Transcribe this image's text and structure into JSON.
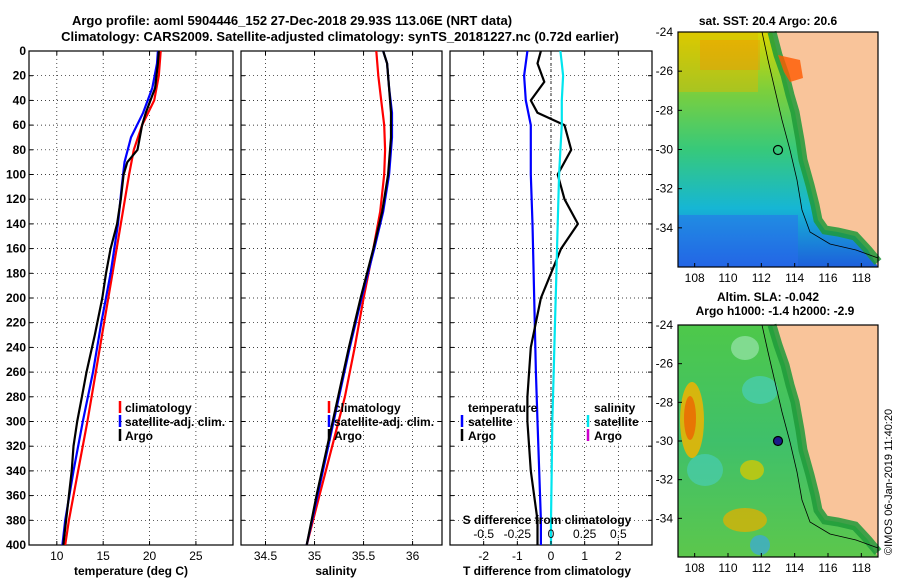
{
  "header": {
    "line1": "Argo profile: aoml 5904446_152 27-Dec-2018 29.93S 113.06E (NRT data)",
    "line2": "Climatology: CARS2009. Satellite-adjusted climatology: synTS_20181227.nc (0.72d earlier)"
  },
  "footer": {
    "credit": "©IMOS 06-Jan-2019 11:40:20"
  },
  "colors": {
    "climatology": "#ff0000",
    "satellite": "#0000ff",
    "argo": "#000000",
    "sat_salinity": "#00e5ee"
  },
  "chart_data": [
    {
      "type": "line",
      "id": "temperature",
      "xlabel": "temperature (deg C)",
      "xlim": [
        7,
        29
      ],
      "xticks": [
        10,
        15,
        20,
        25
      ],
      "ylim": [
        0,
        400
      ],
      "yticks": [
        0,
        20,
        40,
        60,
        80,
        100,
        120,
        140,
        160,
        180,
        200,
        220,
        240,
        260,
        280,
        300,
        320,
        340,
        360,
        380,
        400
      ],
      "legend": [
        "climatology",
        "satellite-adj. clim.",
        "Argo"
      ],
      "series": [
        {
          "name": "climatology",
          "color": "#ff0000",
          "depth": [
            0,
            20,
            40,
            60,
            80,
            100,
            140,
            180,
            220,
            260,
            300,
            340,
            380,
            400
          ],
          "values": [
            21.2,
            21.0,
            20.5,
            19.2,
            18.3,
            17.8,
            16.9,
            16.0,
            15.1,
            14.2,
            13.3,
            12.3,
            11.3,
            10.9
          ]
        },
        {
          "name": "satellite-adj. clim.",
          "color": "#0000ff",
          "depth": [
            0,
            10,
            30,
            50,
            70,
            90,
            110,
            140,
            180,
            220,
            260,
            300,
            340,
            380,
            400
          ],
          "values": [
            20.9,
            20.8,
            20.3,
            19.3,
            18.0,
            17.3,
            17.0,
            16.6,
            15.8,
            14.8,
            13.9,
            12.8,
            11.8,
            10.9,
            10.6
          ]
        },
        {
          "name": "Argo",
          "color": "#000000",
          "depth": [
            0,
            10,
            30,
            50,
            60,
            80,
            90,
            100,
            120,
            140,
            160,
            180,
            200,
            230,
            260,
            280,
            300,
            320,
            340,
            360,
            380,
            400
          ],
          "values": [
            21.0,
            20.9,
            20.6,
            19.6,
            19.2,
            18.7,
            17.6,
            17.2,
            16.9,
            16.5,
            15.8,
            15.3,
            14.9,
            14.1,
            13.2,
            12.7,
            12.2,
            11.8,
            11.6,
            11.3,
            11.0,
            10.7
          ]
        }
      ]
    },
    {
      "type": "line",
      "id": "salinity",
      "xlabel": "salinity",
      "xlim": [
        34.25,
        36.3
      ],
      "xticks": [
        34.5,
        35,
        35.5,
        36
      ],
      "xticklabels": [
        "34.5",
        "35",
        "35.5",
        "36"
      ],
      "ylim": [
        0,
        400
      ],
      "legend": [
        "climatology",
        "satellite-adj. clim.",
        "Argo"
      ],
      "series": [
        {
          "name": "climatology",
          "color": "#ff0000",
          "depth": [
            0,
            20,
            40,
            60,
            80,
            100,
            130,
            160,
            200,
            240,
            280,
            320,
            360,
            400
          ],
          "values": [
            35.63,
            35.65,
            35.68,
            35.71,
            35.72,
            35.71,
            35.67,
            35.6,
            35.5,
            35.41,
            35.31,
            35.18,
            35.05,
            34.92
          ]
        },
        {
          "name": "satellite-adj. clim.",
          "color": "#0000ff",
          "depth": [
            0,
            10,
            30,
            50,
            70,
            100,
            130,
            160,
            200,
            240,
            280,
            320,
            360,
            400
          ],
          "values": [
            35.7,
            35.74,
            35.76,
            35.79,
            35.79,
            35.76,
            35.7,
            35.61,
            35.48,
            35.36,
            35.25,
            35.14,
            35.03,
            34.92
          ]
        },
        {
          "name": "Argo",
          "color": "#000000",
          "depth": [
            0,
            10,
            30,
            50,
            70,
            100,
            130,
            160,
            200,
            240,
            280,
            320,
            360,
            400
          ],
          "values": [
            35.7,
            35.74,
            35.76,
            35.78,
            35.78,
            35.75,
            35.69,
            35.6,
            35.47,
            35.35,
            35.24,
            35.13,
            35.02,
            34.92
          ]
        }
      ]
    },
    {
      "type": "line",
      "id": "difference",
      "xlabel": "T difference from climatology",
      "xlim": [
        -3,
        3
      ],
      "xticks": [
        -2,
        -1,
        0,
        1,
        2
      ],
      "xticklabels": [
        "-2",
        "-1",
        "0",
        "1",
        "2"
      ],
      "top_axis_label": "S difference from climatology",
      "top_ticks": [
        -0.5,
        -0.25,
        0,
        0.25,
        0.5
      ],
      "top_ticklabels": [
        "-0.5",
        "-0.25",
        "0",
        "0.25",
        "0.5"
      ],
      "ylim": [
        0,
        400
      ],
      "legend_temperature_title": "temperature",
      "legend_temperature": [
        "satellite",
        "Argo"
      ],
      "legend_salinity_title": "salinity",
      "legend_salinity": [
        "satellite",
        "Argo"
      ],
      "series": [
        {
          "name": "T satellite",
          "color": "#0000ff",
          "depth": [
            0,
            20,
            40,
            60,
            100,
            140,
            200,
            260,
            300,
            340,
            380,
            400
          ],
          "values": [
            -0.7,
            -0.8,
            -0.75,
            -0.6,
            -0.6,
            -0.55,
            -0.5,
            -0.45,
            -0.4,
            -0.35,
            -0.3,
            -0.3
          ]
        },
        {
          "name": "T Argo",
          "color": "#000000",
          "depth": [
            0,
            10,
            25,
            40,
            50,
            60,
            80,
            100,
            120,
            140,
            160,
            180,
            200,
            240,
            280,
            300,
            340,
            380,
            400
          ],
          "values": [
            -0.3,
            -0.4,
            -0.2,
            -0.6,
            -0.4,
            0.4,
            0.6,
            0.2,
            0.4,
            0.8,
            0.3,
            0.0,
            -0.3,
            -0.6,
            -0.7,
            -0.7,
            -0.6,
            -0.4,
            -0.4
          ]
        },
        {
          "name": "S satellite",
          "color": "#00e5ee",
          "depth": [
            0,
            10,
            20,
            40,
            60,
            80,
            100,
            140,
            180,
            220,
            260,
            300,
            340,
            380,
            400
          ],
          "values": [
            0.07,
            0.08,
            0.09,
            0.08,
            0.08,
            0.07,
            0.06,
            0.05,
            0.04,
            0.03,
            0.02,
            0.01,
            0.005,
            0.0,
            0.0
          ]
        }
      ]
    },
    {
      "type": "heatmap",
      "id": "sst-map",
      "title": "sat. SST: 20.4 Argo: 20.6",
      "xticks": [
        108,
        110,
        112,
        114,
        116,
        118
      ],
      "yticks": [
        -24,
        -26,
        -28,
        -30,
        -32,
        -34
      ],
      "argo_position": [
        113.06,
        -29.93
      ]
    },
    {
      "type": "heatmap",
      "id": "sla-map",
      "title_line1": "Altim. SLA: -0.042",
      "title_line2": "Argo h1000: -1.4 h2000: -2.9",
      "xticks": [
        108,
        110,
        112,
        114,
        116,
        118
      ],
      "yticks": [
        -24,
        -26,
        -28,
        -30,
        -32,
        -34
      ],
      "argo_position": [
        113.06,
        -29.93
      ]
    }
  ]
}
